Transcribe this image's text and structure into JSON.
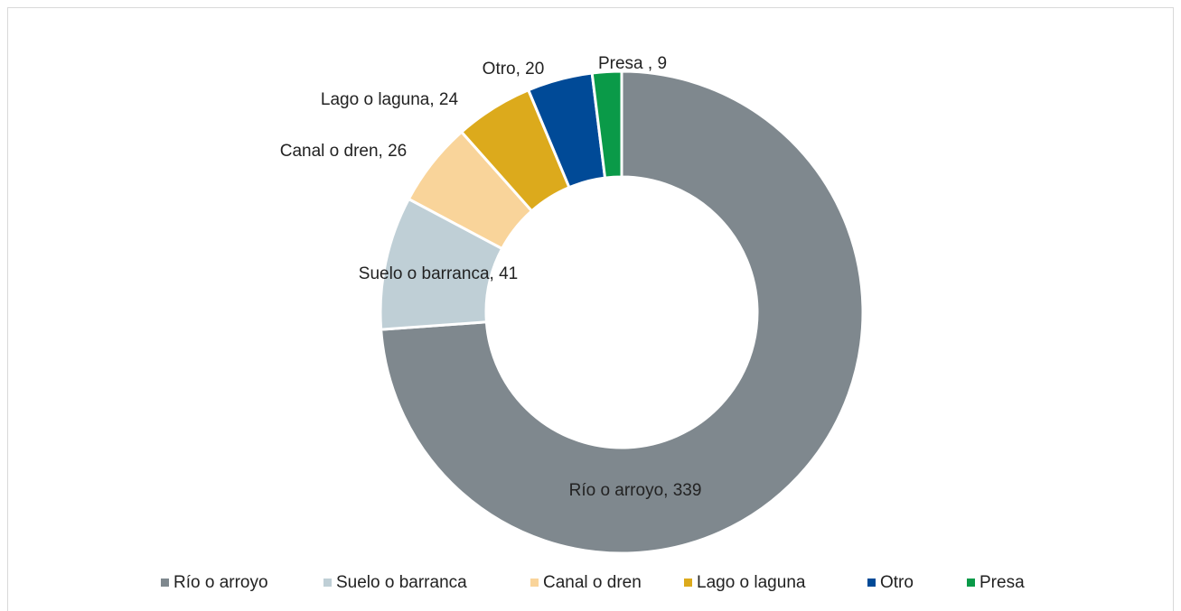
{
  "chart_data": {
    "type": "donut",
    "categories": [
      "Río o arroyo",
      "Suelo o barranca",
      "Canal o dren",
      "Lago o laguna",
      "Otro",
      "Presa"
    ],
    "values": [
      339,
      41,
      26,
      24,
      20,
      9
    ],
    "value_labels": [
      "Río o arroyo, 339",
      "Suelo o barranca, 41",
      "Canal o dren, 26",
      "Lago o laguna, 24",
      "Otro, 20",
      "Presa , 9"
    ],
    "colors": [
      "#7f888e",
      "#bfcfd6",
      "#f9d49a",
      "#dcaa1c",
      "#004a97",
      "#0a9a48"
    ],
    "legend": "bottom"
  }
}
